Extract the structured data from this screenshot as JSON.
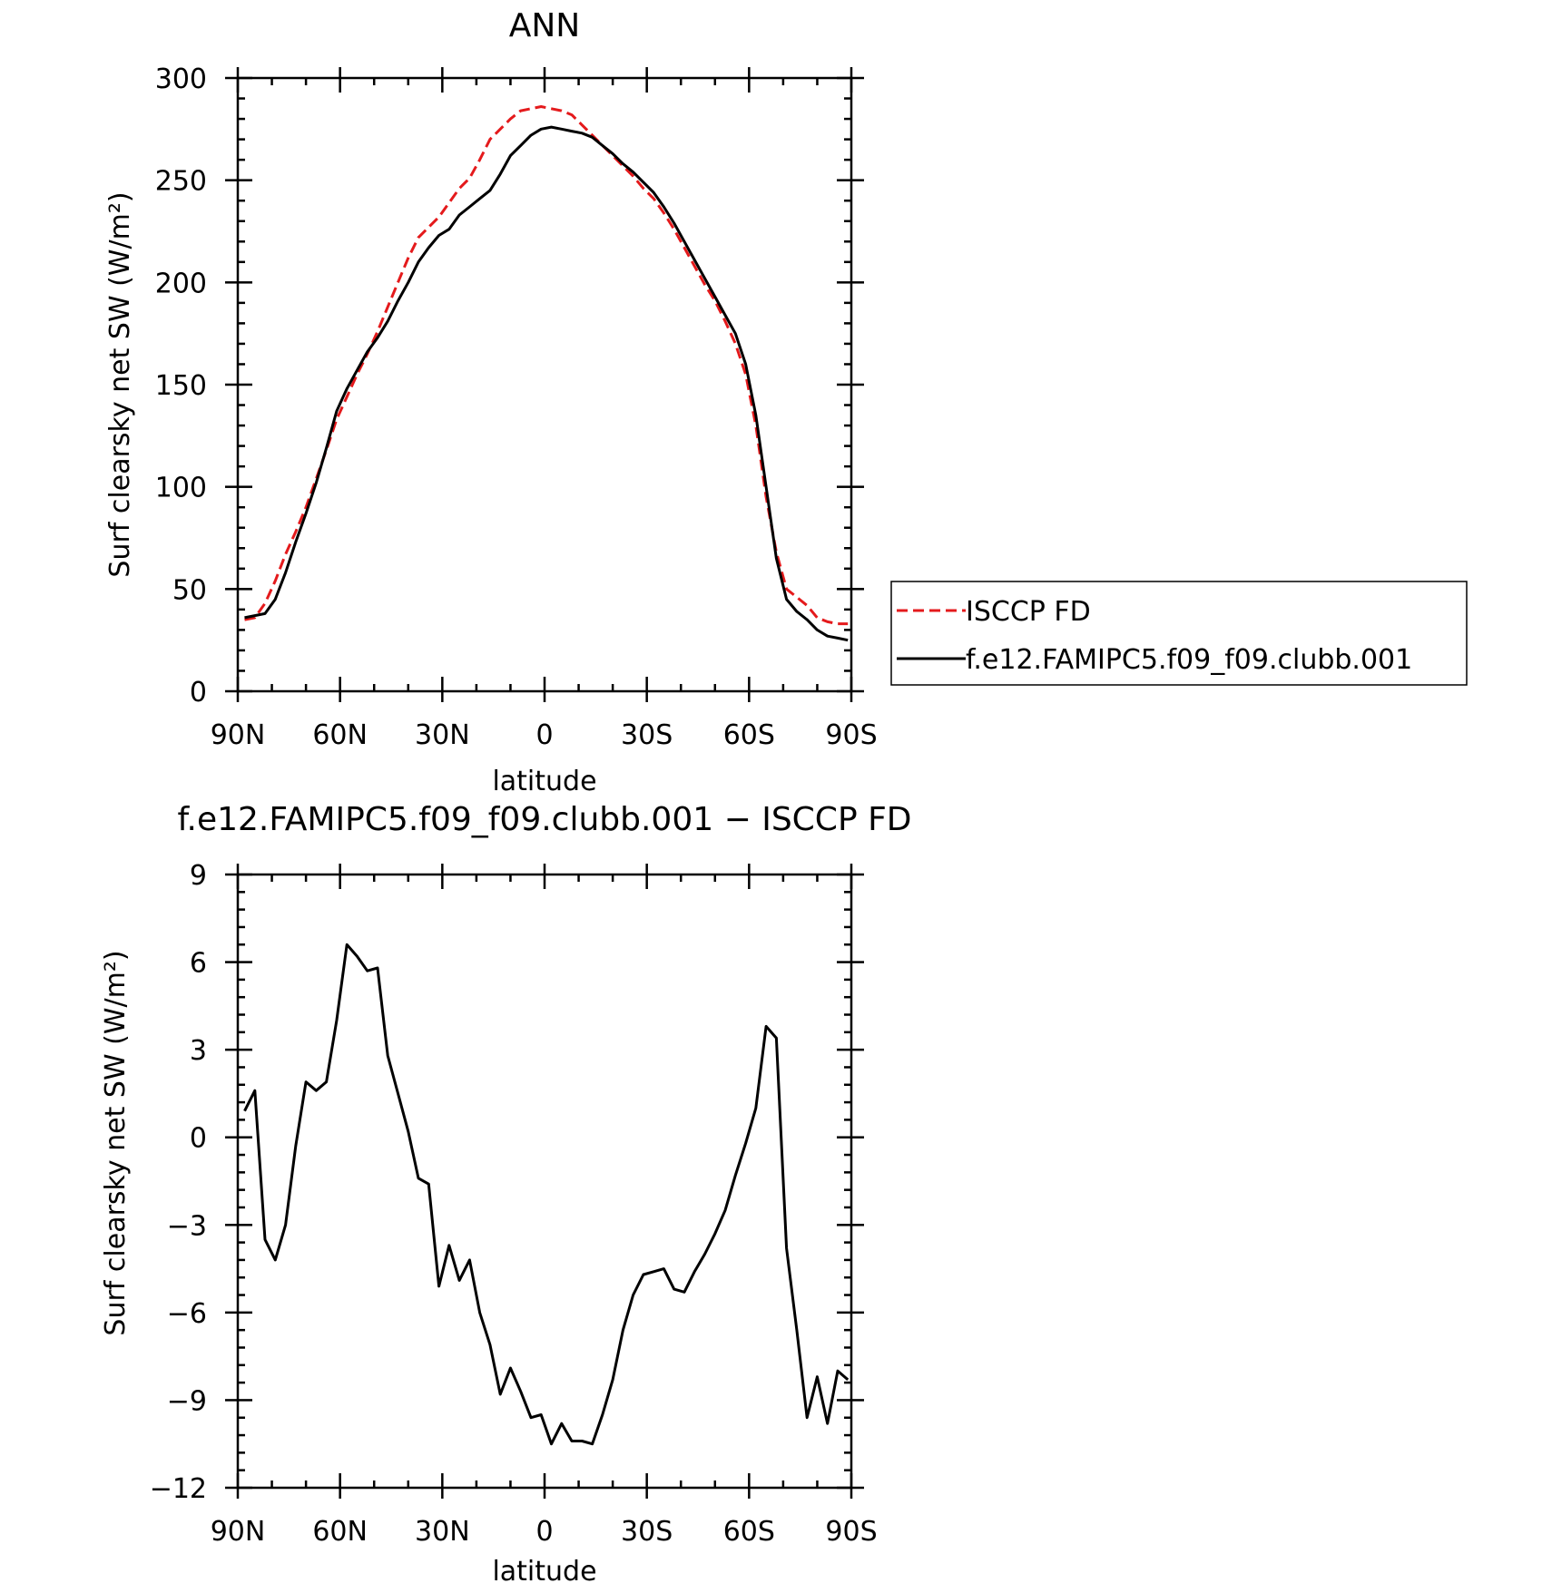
{
  "chart_data": [
    {
      "type": "line",
      "title": "ANN",
      "xlabel": "latitude",
      "ylabel": "Surf clearsky net SW (W/m²)",
      "xlim": [
        90,
        -90
      ],
      "ylim": [
        0,
        300
      ],
      "xticks": [
        90,
        60,
        30,
        0,
        -30,
        -60,
        -90
      ],
      "xtick_labels": [
        "90N",
        "60N",
        "30N",
        "0",
        "30S",
        "60S",
        "90S"
      ],
      "yticks": [
        0,
        50,
        100,
        150,
        200,
        250,
        300
      ],
      "ytick_labels": [
        "0",
        "50",
        "100",
        "150",
        "200",
        "250",
        "300"
      ],
      "legend_position": "right",
      "series": [
        {
          "name": "ISCCP FD",
          "color": "#e41a1c",
          "dash": "dashed",
          "x": [
            88,
            85,
            82,
            79,
            76,
            73,
            70,
            67,
            64,
            61,
            58,
            55,
            52,
            49,
            46,
            43,
            40,
            37,
            34,
            31,
            28,
            25,
            22,
            19,
            16,
            13,
            10,
            7,
            4,
            1,
            -2,
            -5,
            -8,
            -11,
            -14,
            -17,
            -20,
            -23,
            -26,
            -29,
            -32,
            -35,
            -38,
            -41,
            -44,
            -47,
            -50,
            -53,
            -56,
            -59,
            -62,
            -65,
            -68,
            -71,
            -74,
            -77,
            -80,
            -83,
            -86,
            -89
          ],
          "y": [
            35,
            36,
            43,
            54,
            67,
            78,
            90,
            104,
            118,
            133,
            144,
            155,
            165,
            176,
            188,
            200,
            212,
            222,
            227,
            232,
            239,
            246,
            251,
            260,
            270,
            275,
            280,
            284,
            285,
            286,
            285,
            284,
            282,
            277,
            272,
            267,
            262,
            257,
            252,
            246,
            241,
            234,
            226,
            217,
            208,
            199,
            191,
            181,
            170,
            155,
            130,
            95,
            68,
            50,
            46,
            42,
            36,
            34,
            33,
            33
          ]
        },
        {
          "name": "f.e12.FAMIPC5.f09_f09.clubb.001",
          "color": "#000000",
          "dash": "solid",
          "x": [
            88,
            85,
            82,
            79,
            76,
            73,
            70,
            67,
            64,
            61,
            58,
            55,
            52,
            49,
            46,
            43,
            40,
            37,
            34,
            31,
            28,
            25,
            22,
            19,
            16,
            13,
            10,
            7,
            4,
            1,
            -2,
            -5,
            -8,
            -11,
            -14,
            -17,
            -20,
            -23,
            -26,
            -29,
            -32,
            -35,
            -38,
            -41,
            -44,
            -47,
            -50,
            -53,
            -56,
            -59,
            -62,
            -65,
            -68,
            -71,
            -74,
            -77,
            -80,
            -83,
            -86,
            -89
          ],
          "y": [
            36,
            37,
            38,
            45,
            58,
            73,
            87,
            102,
            119,
            137,
            148,
            157,
            166,
            173,
            181,
            191,
            200,
            210,
            217,
            223,
            226,
            233,
            237,
            241,
            245,
            253,
            262,
            267,
            272,
            275,
            276,
            275,
            274,
            273,
            271,
            267,
            263,
            258,
            254,
            249,
            244,
            237,
            229,
            220,
            211,
            202,
            193,
            184,
            175,
            160,
            135,
            100,
            65,
            45,
            39,
            35,
            30,
            27,
            26,
            25
          ]
        }
      ]
    },
    {
      "type": "line",
      "title": "f.e12.FAMIPC5.f09_f09.clubb.001 − ISCCP FD",
      "xlabel": "latitude",
      "ylabel": "Surf clearsky net SW (W/m²)",
      "xlim": [
        90,
        -90
      ],
      "ylim": [
        -12,
        9
      ],
      "xticks": [
        90,
        60,
        30,
        0,
        -30,
        -60,
        -90
      ],
      "xtick_labels": [
        "90N",
        "60N",
        "30N",
        "0",
        "30S",
        "60S",
        "90S"
      ],
      "yticks": [
        -12,
        -9,
        -6,
        -3,
        0,
        3,
        6,
        9
      ],
      "ytick_labels": [
        "−12",
        "−9",
        "−6",
        "−3",
        "0",
        "3",
        "6",
        "9"
      ],
      "series": [
        {
          "color": "#000000",
          "dash": "solid",
          "x": [
            88,
            85,
            82,
            79,
            76,
            73,
            70,
            67,
            64,
            61,
            58,
            55,
            52,
            49,
            46,
            43,
            40,
            37,
            34,
            31,
            28,
            25,
            22,
            19,
            16,
            13,
            10,
            7,
            4,
            1,
            -2,
            -5,
            -8,
            -11,
            -14,
            -17,
            -20,
            -23,
            -26,
            -29,
            -32,
            -35,
            -38,
            -41,
            -44,
            -47,
            -50,
            -53,
            -56,
            -59,
            -62,
            -65,
            -68,
            -71,
            -74,
            -77,
            -80,
            -83,
            -86,
            -89
          ],
          "y": [
            0.9,
            1.6,
            -3.5,
            -4.2,
            -3.0,
            -0.3,
            1.9,
            1.6,
            1.9,
            4.0,
            6.6,
            6.2,
            5.7,
            5.8,
            2.8,
            1.5,
            0.2,
            -1.4,
            -1.6,
            -5.1,
            -3.7,
            -4.9,
            -4.2,
            -6.0,
            -7.1,
            -8.8,
            -7.9,
            -8.7,
            -9.6,
            -9.5,
            -10.5,
            -9.8,
            -10.4,
            -10.4,
            -10.5,
            -9.5,
            -8.3,
            -6.6,
            -5.4,
            -4.7,
            -4.6,
            -4.5,
            -5.2,
            -5.3,
            -4.6,
            -4.0,
            -3.3,
            -2.5,
            -1.3,
            -0.2,
            1.0,
            3.8,
            3.4,
            -3.8,
            -6.6,
            -9.6,
            -8.2,
            -9.8,
            -8.0,
            -8.3
          ]
        }
      ]
    }
  ]
}
